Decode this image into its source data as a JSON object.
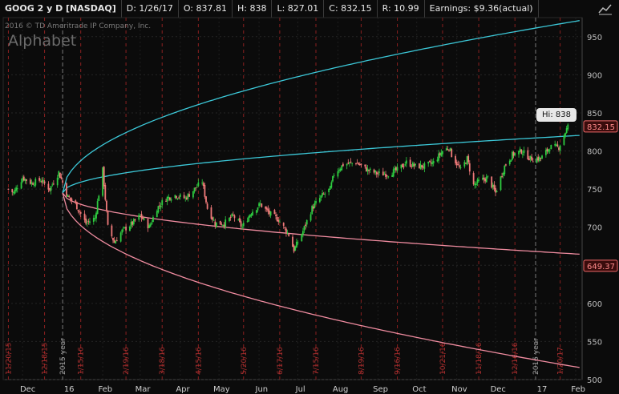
{
  "header": {
    "symbol": "GOOG 2 y D [NASDAQ]",
    "date": "D: 1/26/17",
    "open": "O: 837.81",
    "high": "H: 838",
    "low": "L: 827.01",
    "close": "C: 832.15",
    "range": "R: 10.99",
    "earnings": "Earnings: $9.36(actual)"
  },
  "watermark": {
    "copyright": "2016 © TD Ameritrade IP Company, Inc.",
    "company": "Alphabet"
  },
  "annotations": {
    "hi_label": "Hi: 838",
    "last_price": "832.15",
    "lower_band_price": "649.37"
  },
  "colors": {
    "up": "#2ecc40",
    "down": "#f07a7a",
    "upper_channel": "#3cc8d8",
    "lower_channel": "#f08ca0",
    "grid_vline": "#8a2020",
    "price_tag": "#f06a6a"
  },
  "chart_data": {
    "type": "candlestick",
    "y_ticks": [
      500,
      550,
      600,
      650,
      700,
      750,
      800,
      850,
      900,
      950
    ],
    "ylim": [
      500,
      975
    ],
    "x_tick_labels": [
      "Dec",
      "16",
      "Feb",
      "Mar",
      "Apr",
      "May",
      "Jun",
      "Jul",
      "Aug",
      "Sep",
      "Oct",
      "Nov",
      "Dec",
      "17",
      "Feb"
    ],
    "event_labels": [
      "11/20/15",
      "12/18/15",
      "2015 year",
      "1/15/16",
      "2/19/16",
      "3/18/16",
      "4/15/16",
      "5/20/16",
      "6/17/16",
      "7/15/16",
      "8/19/16",
      "9/16/16",
      "10/21/16",
      "11/18/16",
      "12/16/16",
      "2016 year",
      "1/20/17"
    ],
    "price_path": [
      [
        "2015-11-20",
        750
      ],
      [
        "2015-11-24",
        745
      ],
      [
        "2015-12-01",
        765
      ],
      [
        "2015-12-08",
        758
      ],
      [
        "2015-12-15",
        762
      ],
      [
        "2015-12-22",
        750
      ],
      [
        "2015-12-29",
        772
      ],
      [
        "2016-01-05",
        740
      ],
      [
        "2016-01-11",
        730
      ],
      [
        "2016-01-19",
        705
      ],
      [
        "2016-01-26",
        712
      ],
      [
        "2016-02-01",
        775
      ],
      [
        "2016-02-05",
        700
      ],
      [
        "2016-02-10",
        680
      ],
      [
        "2016-02-16",
        695
      ],
      [
        "2016-02-24",
        705
      ],
      [
        "2016-03-01",
        715
      ],
      [
        "2016-03-08",
        700
      ],
      [
        "2016-03-14",
        725
      ],
      [
        "2016-03-21",
        738
      ],
      [
        "2016-03-28",
        742
      ],
      [
        "2016-04-05",
        738
      ],
      [
        "2016-04-12",
        750
      ],
      [
        "2016-04-18",
        760
      ],
      [
        "2016-04-22",
        725
      ],
      [
        "2016-04-28",
        705
      ],
      [
        "2016-05-05",
        705
      ],
      [
        "2016-05-12",
        715
      ],
      [
        "2016-05-19",
        700
      ],
      [
        "2016-05-26",
        720
      ],
      [
        "2016-06-02",
        730
      ],
      [
        "2016-06-09",
        718
      ],
      [
        "2016-06-16",
        710
      ],
      [
        "2016-06-24",
        690
      ],
      [
        "2016-06-28",
        670
      ],
      [
        "2016-07-05",
        695
      ],
      [
        "2016-07-12",
        725
      ],
      [
        "2016-07-19",
        740
      ],
      [
        "2016-07-26",
        750
      ],
      [
        "2016-07-29",
        770
      ],
      [
        "2016-08-05",
        782
      ],
      [
        "2016-08-15",
        785
      ],
      [
        "2016-08-24",
        775
      ],
      [
        "2016-09-01",
        770
      ],
      [
        "2016-09-09",
        770
      ],
      [
        "2016-09-16",
        775
      ],
      [
        "2016-09-23",
        785
      ],
      [
        "2016-09-30",
        780
      ],
      [
        "2016-10-07",
        780
      ],
      [
        "2016-10-14",
        785
      ],
      [
        "2016-10-21",
        800
      ],
      [
        "2016-10-26",
        805
      ],
      [
        "2016-10-28",
        795
      ],
      [
        "2016-11-04",
        775
      ],
      [
        "2016-11-09",
        790
      ],
      [
        "2016-11-14",
        755
      ],
      [
        "2016-11-18",
        760
      ],
      [
        "2016-11-25",
        765
      ],
      [
        "2016-12-01",
        745
      ],
      [
        "2016-12-08",
        780
      ],
      [
        "2016-12-14",
        795
      ],
      [
        "2016-12-21",
        800
      ],
      [
        "2016-12-28",
        790
      ],
      [
        "2017-01-05",
        790
      ],
      [
        "2017-01-12",
        805
      ],
      [
        "2017-01-19",
        805
      ],
      [
        "2017-01-24",
        825
      ],
      [
        "2017-01-26",
        832.15
      ]
    ],
    "channels": [
      {
        "anchor": [
          "2016-01-01",
          745
        ],
        "end": [
          "2017-01-31",
          970
        ]
      },
      {
        "anchor": [
          "2016-01-01",
          745
        ],
        "end": [
          "2017-01-31",
          820
        ]
      },
      {
        "anchor": [
          "2016-01-01",
          745
        ],
        "end": [
          "2017-01-31",
          665
        ]
      },
      {
        "anchor": [
          "2016-01-01",
          745
        ],
        "end": [
          "2017-01-31",
          517
        ]
      }
    ]
  }
}
